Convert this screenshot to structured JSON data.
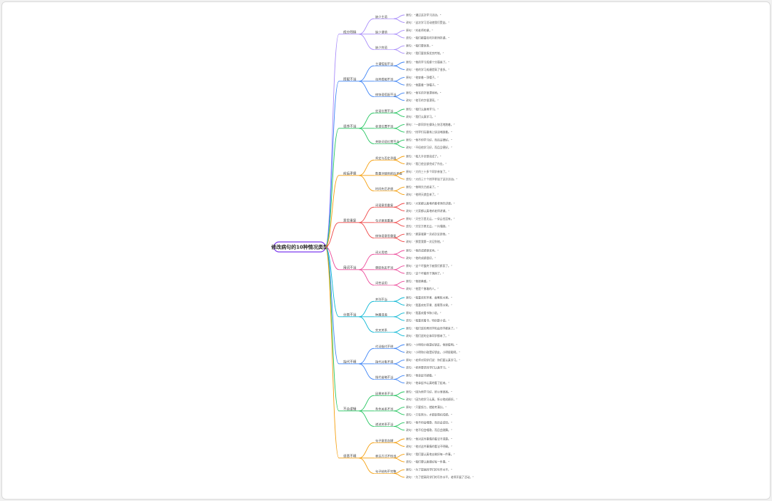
{
  "root": {
    "text": "修改病句的10种情况类型"
  },
  "branches": [
    {
      "text": "成分残缺",
      "color": "#a78bfa",
      "children": [
        {
          "text": "缺少主语",
          "leaves": [
            "原句：“通过这次学习活动，”",
            "改句：“这次学习活动使我们受益。”"
          ]
        },
        {
          "text": "缺少谓语",
          "leaves": [
            "原句：“刘老师的课，”",
            "改句：“我们都喜欢听刘老师的课。”"
          ]
        },
        {
          "text": "缺少宾语",
          "leaves": [
            "原句：“我们要发扬，”",
            "改句：“我们要发扬优良传统。”"
          ]
        }
      ]
    },
    {
      "text": "搭配不当",
      "color": "#3b82f6",
      "children": [
        {
          "text": "主谓搭配不当",
          "leaves": [
            "原句：“他的学习成绩十分提高了。”",
            "改句：“他的学习成绩提高了很多。”"
          ]
        },
        {
          "text": "动宾搭配不当",
          "leaves": [
            "原句：“他穿着一顶帽子。”",
            "改句：“他戴着一顶帽子。”"
          ]
        },
        {
          "text": "修饰语搭配不当",
          "leaves": [
            "原句：“他写的字很漂亮地。”",
            "改句：“他写的字很漂亮。”"
          ]
        }
      ]
    },
    {
      "text": "语序不当",
      "color": "#22c55e",
      "children": [
        {
          "text": "定语位置不当",
          "leaves": [
            "原句：“我们认真地学习。”",
            "改句：“我们认真学习。”"
          ]
        },
        {
          "text": "状语位置不当",
          "leaves": [
            "原句：“一群同学在操场上快活地跑着。”",
            "改句：“同学们在操场上快活地跑着。”"
          ]
        },
        {
          "text": "关联词语位置不当",
          "leaves": [
            "原句：“他不但学习好，而且品德好。”",
            "改句：“不但他学习好，而且品德好。”"
          ]
        }
      ]
    },
    {
      "text": "前后矛盾",
      "color": "#f59e0b",
      "children": [
        {
          "text": "肯定与否定矛盾",
          "leaves": [
            "原句：“我几乎全部完成了。”",
            "改句：“我已经全部完成了作业。”"
          ]
        },
        {
          "text": "数量词使用前后矛盾",
          "leaves": [
            "原句：“大约三十多个同学参加了。”",
            "改句：“大约三十个同学参加了这次活动。”"
          ]
        },
        {
          "text": "时间先后矛盾",
          "leaves": [
            "原句：“他明天已经来了。”",
            "改句：“他明天就会来了。”"
          ]
        }
      ]
    },
    {
      "text": "意思重复",
      "color": "#ef4444",
      "children": [
        {
          "text": "词语意思重复",
          "leaves": [
            "原句：“大家都认真地听着老师的讲课。”",
            "改句：“大家都认真地听老师讲课。”"
          ]
        },
        {
          "text": "句子意思重复",
          "leaves": [
            "原句：“天空万里无云，一朵云也没有。”",
            "改句：“天空万里无云，一片晴朗。”"
          ]
        },
        {
          "text": "修饰语意思重复",
          "leaves": [
            "原句：“那是我第一次初次见到他。”",
            "改句：“那是我第一次见到他。”"
          ]
        }
      ]
    },
    {
      "text": "用词不当",
      "color": "#ec4899",
      "children": [
        {
          "text": "词义用错",
          "leaves": [
            "原句：“他的成绩很优秀。”",
            "改句：“他的成绩很好。”"
          ]
        },
        {
          "text": "褒贬色彩不当",
          "leaves": [
            "原句：“这个坏蛋终于被我们抓获了。”",
            "改句：“这个坏蛋终于落网了。”"
          ]
        },
        {
          "text": "词性误用",
          "leaves": [
            "原句：“他很勇敢。”",
            "改句：“他是个勇敢的人。”"
          ]
        }
      ]
    },
    {
      "text": "分类不当",
      "color": "#06b6d4",
      "children": [
        {
          "text": "并列不当",
          "leaves": [
            "原句：“我喜欢吃苹果、香蕉和水果。”",
            "改句：“我喜欢吃苹果、香蕉等水果。”"
          ]
        },
        {
          "text": "种属混淆",
          "leaves": [
            "原句：“我喜欢看书和小说。”",
            "改句：“我喜欢看书，特别是小说。”"
          ]
        },
        {
          "text": "交叉关系",
          "leaves": [
            "原句：“我们班的男同学和女同学都来了。”",
            "改句：“我们班的全体同学都来了。”"
          ]
        }
      ]
    },
    {
      "text": "指代不明",
      "color": "#3b82f6",
      "children": [
        {
          "text": "代词指代不明",
          "leaves": [
            "原句：“小明和小刚是好朋友，他很聪明。”",
            "改句：“小明和小刚是好朋友，小明很聪明。”"
          ]
        },
        {
          "text": "指代对象不清",
          "leaves": [
            "原句：“老师对同学们说：你们要认真学习。”",
            "改句：“老师要求同学们认真学习。”"
          ]
        },
        {
          "text": "指代省略不当",
          "leaves": [
            "原句：“他拿起书就看。”",
            "改句：“他拿起书认真地看了起来。”"
          ]
        }
      ]
    },
    {
      "text": "不合逻辑",
      "color": "#22c55e",
      "children": [
        {
          "text": "因果关系不当",
          "leaves": [
            "原句：“因为他学习好，所以他很高。”",
            "改句：“因为他学习认真，所以他成绩好。”"
          ]
        },
        {
          "text": "条件关系不当",
          "leaves": [
            "原句：“只要努力，就能考满分。”",
            "改句：“只有努力，才能取得好成绩。”"
          ]
        },
        {
          "text": "递进关系不当",
          "leaves": [
            "原句：“他不但会唱歌，而且会说话。”",
            "改句：“他不但会唱歌，而且会跳舞。”"
          ]
        }
      ]
    },
    {
      "text": "语意不明",
      "color": "#f59e0b",
      "children": [
        {
          "text": "句子意思含糊",
          "leaves": [
            "原句：“他对这件事情的看法不清楚。”",
            "改句：“他对这件事情的看法不明确。”"
          ]
        },
        {
          "text": "表达方式不恰当",
          "leaves": [
            "原句：“我们要认真地去做好每一件事。”",
            "改句：“我们要认真做好每一件事。”"
          ]
        },
        {
          "text": "句子结构不完整",
          "leaves": [
            "原句：“为了提高同学们的写作水平，”",
            "改句：“为了提高同学们的写作水平，老师开展了活动。”"
          ]
        }
      ]
    }
  ]
}
